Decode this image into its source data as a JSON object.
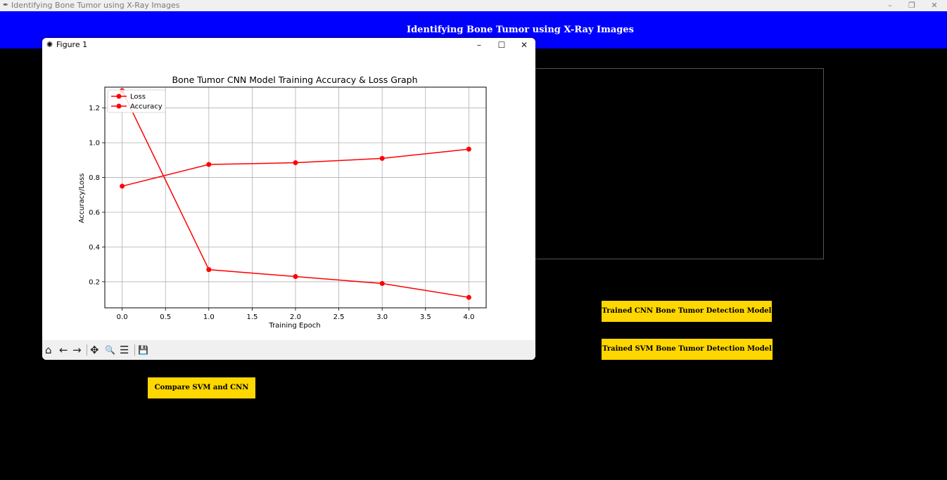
{
  "window": {
    "title": "Identifying Bone Tumor using X-Ray Images",
    "minimize": "–",
    "restore": "❐",
    "close": "✕"
  },
  "header": {
    "title": "Identifying Bone Tumor using X-Ray Images"
  },
  "buttons": {
    "cnn_label": "Trained CNN Bone Tumor Detection Model",
    "svm_label": "Trained SVM Bone Tumor Detection Model",
    "compare_label": "Compare SVM and CNN"
  },
  "figure_window": {
    "title": "Figure 1",
    "minimize": "–",
    "maximize": "☐",
    "close": "✕",
    "toolbar": {
      "home": "⌂",
      "back": "←",
      "forward": "→",
      "pan": "✥",
      "zoom": "🔍",
      "configure": "☰",
      "save": "💾"
    }
  },
  "chart_data": {
    "type": "line",
    "title": "Bone Tumor CNN Model Training Accuracy & Loss Graph",
    "xlabel": "Training Epoch",
    "ylabel": "Accuracy/Loss",
    "x": [
      0,
      1,
      2,
      3,
      4
    ],
    "series": [
      {
        "name": "Loss",
        "color": "#ff0000",
        "values": [
          1.3,
          0.27,
          0.23,
          0.19,
          0.11
        ]
      },
      {
        "name": "Accuracy",
        "color": "#ff0000",
        "values": [
          0.75,
          0.875,
          0.885,
          0.91,
          0.963
        ]
      }
    ],
    "xlim": [
      -0.2,
      4.2
    ],
    "ylim": [
      0.05,
      1.32
    ],
    "xticks": [
      "0.0",
      "0.5",
      "1.0",
      "1.5",
      "2.0",
      "2.5",
      "3.0",
      "3.5",
      "4.0"
    ],
    "yticks": [
      "0.2",
      "0.4",
      "0.6",
      "0.8",
      "1.0",
      "1.2"
    ],
    "grid": true,
    "legend": "upper-left"
  }
}
